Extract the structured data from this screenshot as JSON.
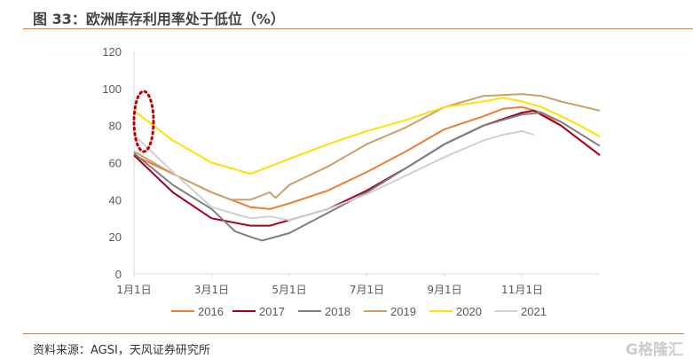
{
  "title": "图 33：欧洲库存利用率处于低位（%）",
  "source": "资料来源：AGSI，天风证券研究所",
  "watermark": "格隆汇",
  "chart_data": {
    "type": "line",
    "title": "",
    "xlabel": "",
    "ylabel": "",
    "ylim": [
      0,
      120
    ],
    "yticks": [
      0,
      20,
      40,
      60,
      80,
      100,
      120
    ],
    "xlim_month": [
      0,
      12
    ],
    "xticks": [
      {
        "m": 0,
        "label": "1月1日"
      },
      {
        "m": 2,
        "label": "3月1日"
      },
      {
        "m": 4,
        "label": "5月1日"
      },
      {
        "m": 6,
        "label": "7月1日"
      },
      {
        "m": 8,
        "label": "9月1日"
      },
      {
        "m": 10,
        "label": "11月1日"
      }
    ],
    "grid": false,
    "legend": "bottom",
    "annotation": "red dotted ellipse around start of year",
    "series": [
      {
        "name": "2016",
        "color": "#ED7D31",
        "x": [
          0,
          1,
          2,
          3,
          3.5,
          4,
          5,
          6,
          7,
          8,
          9,
          9.5,
          10,
          10.5,
          11,
          12
        ],
        "y": [
          64,
          54,
          44,
          36,
          35,
          38,
          45,
          55,
          66,
          78,
          85,
          89,
          90,
          87,
          80,
          64
        ]
      },
      {
        "name": "2017",
        "color": "#A50021",
        "x": [
          0,
          1,
          2,
          3,
          3.5,
          4,
          5,
          6,
          7,
          8,
          9,
          10,
          10.3,
          11,
          12
        ],
        "y": [
          64,
          44,
          30,
          26,
          26,
          29,
          35,
          45,
          57,
          70,
          80,
          87,
          88,
          80,
          64
        ]
      },
      {
        "name": "2018",
        "color": "#7F7F7F",
        "x": [
          0,
          1,
          2,
          2.6,
          3,
          3.3,
          4,
          5,
          6,
          7,
          8,
          9,
          10,
          10.5,
          11,
          12
        ],
        "y": [
          65,
          48,
          35,
          23,
          20,
          18,
          22,
          33,
          44,
          57,
          70,
          80,
          86,
          87,
          82,
          69
        ]
      },
      {
        "name": "2019",
        "color": "#C9A06B",
        "x": [
          0,
          1,
          2,
          2.5,
          3,
          3.5,
          3.65,
          4,
          5,
          6,
          7,
          8,
          9,
          10,
          10.5,
          11,
          12
        ],
        "y": [
          66,
          54,
          44,
          40,
          40,
          44,
          41,
          48,
          58,
          70,
          79,
          90,
          96,
          97,
          96,
          93,
          88
        ]
      },
      {
        "name": "2020",
        "color": "#FFE000",
        "x": [
          0,
          1,
          2,
          3,
          4,
          5,
          6,
          7,
          8,
          9,
          9.5,
          10,
          10.5,
          11,
          11.5,
          12
        ],
        "y": [
          88,
          72,
          60,
          54,
          62,
          70,
          77,
          83,
          90,
          93,
          95,
          93,
          90,
          85,
          80,
          74
        ]
      },
      {
        "name": "2021",
        "color": "#D0D0D0",
        "x": [
          0,
          1,
          2,
          3,
          3.5,
          4,
          5,
          6,
          7,
          8,
          9,
          9.5,
          10,
          10.3
        ],
        "y": [
          75,
          55,
          36,
          30,
          31,
          29,
          35,
          43,
          53,
          63,
          72,
          75,
          77,
          75
        ]
      }
    ]
  }
}
